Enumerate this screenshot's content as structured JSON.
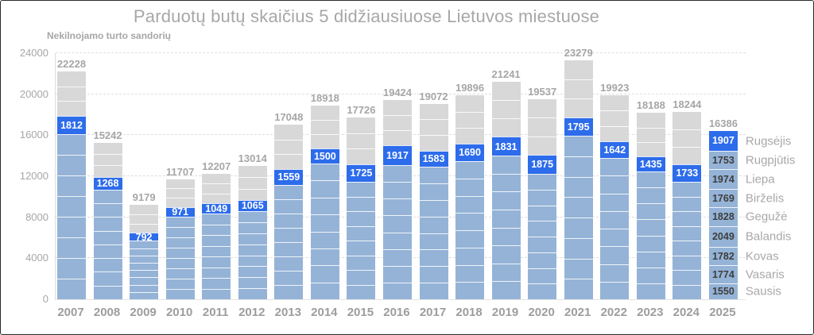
{
  "chart_data": {
    "type": "stacked-bar",
    "title": "Parduotų butų skaičius 5 didžiausiuose Lietuvos miestuose",
    "axis_note": "Nekilnojamo turto sandorių",
    "axis": {
      "ymin": 0,
      "ymax": 24000,
      "step": 4000,
      "ticks": [
        0,
        4000,
        8000,
        12000,
        16000,
        20000,
        24000
      ],
      "grid": "dashed horizontal"
    },
    "legend": "none",
    "stack_order": "months bottom-to-top (Sausis at bottom); September highlighted blue; Jan–Aug light blue; Oct–Dec gray",
    "years": [
      {
        "year": "2007",
        "total": 22228,
        "september": 1812,
        "jan_aug_sum": 16100
      },
      {
        "year": "2008",
        "total": 15242,
        "september": 1268,
        "jan_aug_sum": 10700
      },
      {
        "year": "2009",
        "total": 9179,
        "september": 792,
        "jan_aug_sum": 5700
      },
      {
        "year": "2010",
        "total": 11707,
        "september": 971,
        "jan_aug_sum": 8050
      },
      {
        "year": "2011",
        "total": 12207,
        "september": 1049,
        "jan_aug_sum": 8360
      },
      {
        "year": "2012",
        "total": 13014,
        "september": 1065,
        "jan_aug_sum": 8600
      },
      {
        "year": "2013",
        "total": 17048,
        "september": 1559,
        "jan_aug_sum": 11150
      },
      {
        "year": "2014",
        "total": 18918,
        "september": 1500,
        "jan_aug_sum": 13230
      },
      {
        "year": "2015",
        "total": 17726,
        "september": 1725,
        "jan_aug_sum": 11460
      },
      {
        "year": "2016",
        "total": 19424,
        "september": 1917,
        "jan_aug_sum": 13080
      },
      {
        "year": "2017",
        "total": 19072,
        "september": 1583,
        "jan_aug_sum": 12930
      },
      {
        "year": "2018",
        "total": 19896,
        "september": 1690,
        "jan_aug_sum": 13470
      },
      {
        "year": "2019",
        "total": 21241,
        "september": 1831,
        "jan_aug_sum": 14010
      },
      {
        "year": "2020",
        "total": 19537,
        "september": 1875,
        "jan_aug_sum": 12230
      },
      {
        "year": "2021",
        "total": 23279,
        "september": 1795,
        "jan_aug_sum": 15950
      },
      {
        "year": "2022",
        "total": 19923,
        "september": 1642,
        "jan_aug_sum": 13780
      },
      {
        "year": "2023",
        "total": 18188,
        "september": 1435,
        "jan_aug_sum": 12465
      },
      {
        "year": "2024",
        "total": 18244,
        "september": 1733,
        "jan_aug_sum": 11460
      },
      {
        "year": "2025",
        "total": 16386,
        "months": [
          {
            "name": "Sausis",
            "value": 1550
          },
          {
            "name": "Vasaris",
            "value": 1774
          },
          {
            "name": "Kovas",
            "value": 1782
          },
          {
            "name": "Balandis",
            "value": 2049
          },
          {
            "name": "Gegužė",
            "value": 1828
          },
          {
            "name": "Birželis",
            "value": 1769
          },
          {
            "name": "Liepa",
            "value": 1974
          },
          {
            "name": "Rugpjūtis",
            "value": 1753
          },
          {
            "name": "Rugsėjis",
            "value": 1907,
            "highlight": true
          }
        ]
      }
    ],
    "colors": {
      "september_blue": "#2d6ceb",
      "jan_aug_light_blue": "#95b3d7",
      "oct_dec_gray": "#d8d8d8",
      "text_gray": "#a6a6a6",
      "value_dark": "#3d3d3d",
      "gridline": "#dedede"
    }
  }
}
